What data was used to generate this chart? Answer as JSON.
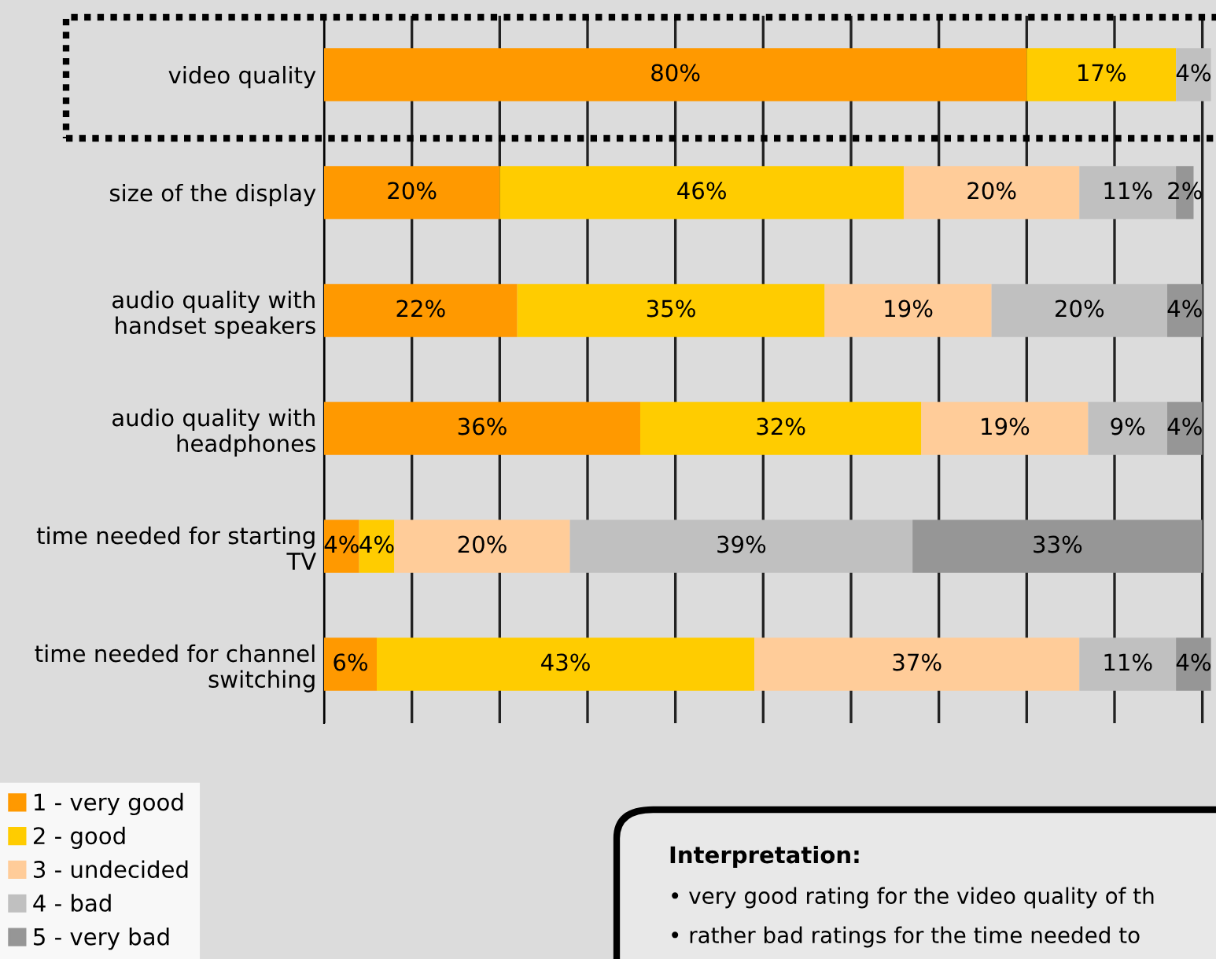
{
  "chart_data": {
    "type": "bar",
    "orientation": "horizontal",
    "stacked": true,
    "categories": [
      "video quality",
      "size of the display",
      "audio quality with\nhandset speakers",
      "audio quality with\nheadphones",
      "time needed for starting\nTV",
      "time needed for channel\nswitching"
    ],
    "series": [
      {
        "name": "1 - very good",
        "color": "#ff9900",
        "values": [
          80,
          20,
          22,
          36,
          4,
          6
        ],
        "value_labels": [
          "80%",
          "20%",
          "22%",
          "36%",
          "4%",
          "6%"
        ]
      },
      {
        "name": "2 - good",
        "color": "#ffcc00",
        "values": [
          17,
          46,
          35,
          32,
          4,
          43
        ],
        "value_labels": [
          "17%",
          "46%",
          "35%",
          "32%",
          "4%",
          "43%"
        ]
      },
      {
        "name": "3 - undecided",
        "color": "#ffcc99",
        "values": [
          null,
          20,
          19,
          19,
          20,
          37
        ],
        "value_labels": [
          null,
          "20%",
          "19%",
          "19%",
          "20%",
          "37%"
        ]
      },
      {
        "name": "4 - bad",
        "color": "#c0c0c0",
        "values": [
          4,
          11,
          20,
          9,
          39,
          11
        ],
        "value_labels": [
          "4%",
          "11%",
          "20%",
          "9%",
          "39%",
          "11%"
        ]
      },
      {
        "name": "5 - very bad",
        "color": "#969696",
        "values": [
          null,
          2,
          4,
          4,
          33,
          4
        ],
        "value_labels": [
          null,
          "2%",
          "4%",
          "4%",
          "33%",
          "4%"
        ]
      }
    ],
    "tick_labels": "y",
    "grid": "x",
    "legend": "bottom left",
    "annotations": [
      "Interpretation:",
      "• very good rating for the video quality of th",
      "• rather bad ratings for the time needed to"
    ]
  }
}
